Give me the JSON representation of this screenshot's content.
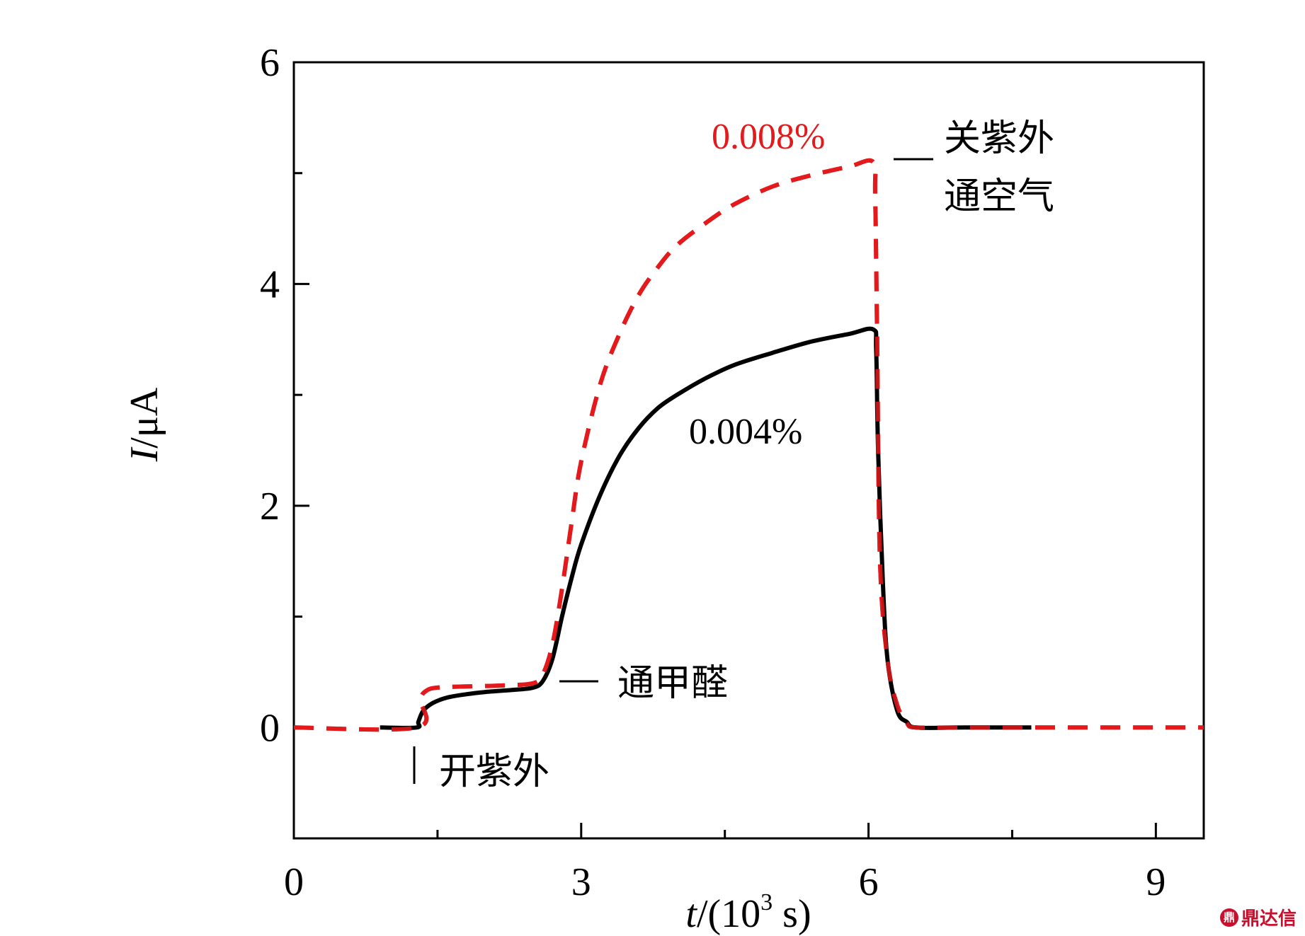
{
  "chart_data": {
    "type": "line",
    "xlabel_var": "t",
    "xlabel_unit": "/(10",
    "xlabel_sup": "3",
    "xlabel_tail": " s)",
    "ylabel_var": "I",
    "ylabel_unit": "/μA",
    "xlim": [
      0,
      9.5
    ],
    "ylim": [
      -1,
      6
    ],
    "x_ticks": [
      0,
      3,
      6,
      9
    ],
    "x_minor_ticks": [
      1.5,
      4.5,
      7.5
    ],
    "y_ticks": [
      0,
      2,
      4,
      6
    ],
    "y_minor_ticks": [
      1,
      3,
      5
    ],
    "x_tick_labels": [
      "0",
      "3",
      "6",
      "9"
    ],
    "y_tick_labels": [
      "0",
      "2",
      "4",
      "6"
    ],
    "grid": false,
    "series": [
      {
        "label": "0.004%",
        "color": "#000000",
        "style": "solid",
        "x": [
          0.9,
          1.28,
          1.3,
          1.35,
          1.45,
          1.6,
          1.8,
          2.0,
          2.3,
          2.5,
          2.6,
          2.7,
          2.8,
          2.9,
          3.0,
          3.2,
          3.4,
          3.6,
          3.8,
          4.0,
          4.3,
          4.6,
          5.0,
          5.4,
          5.8,
          6.05,
          6.08,
          6.1,
          6.15,
          6.2,
          6.3,
          6.4,
          6.5,
          7.0,
          7.7
        ],
        "y": [
          0.0,
          0.0,
          0.05,
          0.15,
          0.22,
          0.27,
          0.3,
          0.32,
          0.34,
          0.36,
          0.42,
          0.62,
          1.0,
          1.35,
          1.65,
          2.1,
          2.45,
          2.7,
          2.88,
          3.0,
          3.15,
          3.27,
          3.38,
          3.48,
          3.55,
          3.59,
          3.4,
          2.5,
          1.3,
          0.6,
          0.15,
          0.05,
          0.0,
          0.0,
          0.0
        ]
      },
      {
        "label": "0.008%",
        "color": "#e31a1c",
        "style": "dashed",
        "x": [
          0.0,
          1.28,
          1.32,
          1.38,
          1.5,
          1.8,
          2.2,
          2.5,
          2.6,
          2.7,
          2.8,
          2.9,
          3.0,
          3.2,
          3.4,
          3.6,
          3.8,
          4.0,
          4.3,
          4.6,
          5.0,
          5.4,
          5.8,
          6.05,
          6.07,
          6.09,
          6.12,
          6.2,
          6.3,
          6.4,
          6.5,
          7.0,
          9.5
        ],
        "y": [
          0.0,
          0.0,
          0.25,
          0.33,
          0.36,
          0.37,
          0.38,
          0.4,
          0.48,
          0.75,
          1.25,
          1.85,
          2.4,
          3.1,
          3.55,
          3.9,
          4.15,
          4.35,
          4.55,
          4.72,
          4.88,
          4.98,
          5.06,
          5.1,
          4.8,
          3.5,
          1.5,
          0.6,
          0.2,
          0.04,
          0.0,
          0.0,
          0.0
        ]
      }
    ],
    "annotations": [
      {
        "id": "uv_on",
        "text": "开紫外",
        "x": 1.3
      },
      {
        "id": "hcho_on",
        "text": "通甲醛",
        "x": 2.65
      },
      {
        "id": "uv_off_line1",
        "text": "关紫外"
      },
      {
        "id": "uv_off_line2",
        "text": "通空气"
      }
    ]
  },
  "watermark": {
    "text": "鼎达信",
    "logo_glyph": "鼎"
  }
}
